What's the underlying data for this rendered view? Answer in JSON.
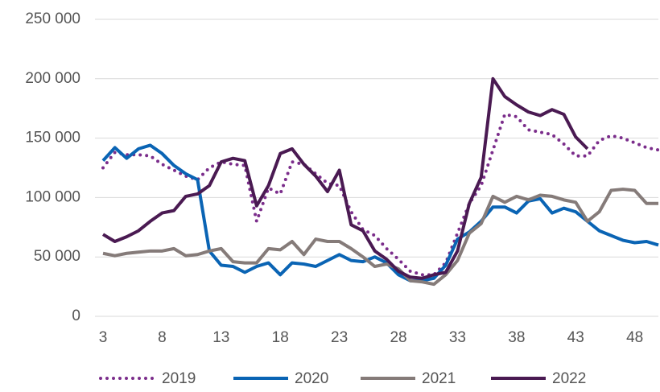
{
  "chart_data": {
    "type": "line",
    "x": [
      3,
      4,
      5,
      6,
      7,
      8,
      9,
      10,
      11,
      12,
      13,
      14,
      15,
      16,
      17,
      18,
      19,
      20,
      21,
      22,
      23,
      24,
      25,
      26,
      27,
      28,
      29,
      30,
      31,
      32,
      33,
      34,
      35,
      36,
      37,
      38,
      39,
      40,
      41,
      42,
      43,
      44,
      45,
      46,
      47,
      48,
      49,
      50
    ],
    "series": [
      {
        "name": "2019",
        "color": "#7b2d8b",
        "style": "dotted",
        "values": [
          125000,
          138000,
          136000,
          136000,
          135000,
          128000,
          123000,
          118000,
          115000,
          125000,
          130000,
          128000,
          127000,
          80000,
          108000,
          103000,
          130000,
          128000,
          120000,
          112000,
          110000,
          88000,
          73000,
          68000,
          57000,
          48000,
          38000,
          35000,
          35000,
          45000,
          70000,
          95000,
          110000,
          140000,
          170000,
          168000,
          157000,
          155000,
          153000,
          145000,
          135000,
          135000,
          148000,
          152000,
          150000,
          146000,
          142000,
          140000
        ]
      },
      {
        "name": "2020",
        "color": "#0a64b4",
        "style": "solid",
        "values": [
          131000,
          142000,
          133000,
          141000,
          144000,
          137000,
          127000,
          120000,
          115000,
          55000,
          43000,
          42000,
          37000,
          42000,
          45000,
          35000,
          45000,
          44000,
          42000,
          47000,
          52000,
          47000,
          46000,
          50000,
          45000,
          35000,
          30000,
          30000,
          32000,
          43000,
          65000,
          71000,
          80000,
          92000,
          92000,
          87000,
          97000,
          99000,
          87000,
          91000,
          88000,
          80000,
          72000,
          68000,
          64000,
          62000,
          63000,
          60000
        ]
      },
      {
        "name": "2021",
        "color": "#857b79",
        "style": "solid",
        "values": [
          53000,
          51000,
          53000,
          54000,
          55000,
          55000,
          57000,
          51000,
          52000,
          55000,
          57000,
          46000,
          45000,
          45000,
          57000,
          56000,
          63000,
          52000,
          65000,
          63000,
          63000,
          57000,
          50000,
          42000,
          44000,
          40000,
          30000,
          29000,
          27000,
          35000,
          47000,
          70000,
          78000,
          101000,
          96000,
          101000,
          98000,
          102000,
          101000,
          98000,
          96000,
          80000,
          88000,
          106000,
          107000,
          106000,
          95000,
          95000
        ]
      },
      {
        "name": "2022",
        "color": "#4a1a52",
        "style": "solid",
        "values": [
          69000,
          63000,
          67000,
          72000,
          80000,
          87000,
          89000,
          101000,
          103000,
          110000,
          130000,
          133000,
          131000,
          93000,
          110000,
          137000,
          141000,
          128000,
          118000,
          105000,
          123000,
          77000,
          72000,
          55000,
          48000,
          38000,
          33000,
          32000,
          35000,
          37000,
          55000,
          95000,
          117000,
          200000,
          185000,
          178000,
          172000,
          169000,
          174000,
          170000,
          151000,
          141000,
          null,
          null,
          null,
          null,
          null,
          null
        ]
      }
    ],
    "xlim": [
      3,
      50
    ],
    "xticks": [
      3,
      8,
      13,
      18,
      23,
      28,
      33,
      38,
      43,
      48
    ],
    "ylim": [
      0,
      250000
    ],
    "yticks": [
      0,
      {
        "value": 50000,
        "label": "50 000"
      },
      {
        "value": 100000,
        "label": "100 000"
      },
      {
        "value": 150000,
        "label": "150 000"
      },
      {
        "value": 200000,
        "label": "200 000"
      },
      {
        "value": 250000,
        "label": "250 000"
      }
    ],
    "grid": true,
    "legend": "bottom"
  }
}
